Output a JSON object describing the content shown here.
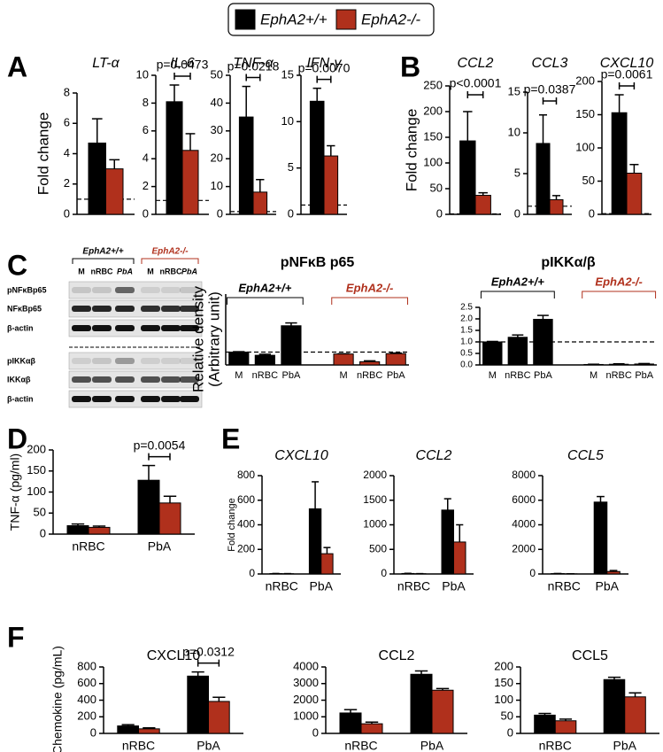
{
  "legend": [
    {
      "name": "EphA2+/+",
      "color": "#000000"
    },
    {
      "name": "EphA2-/-",
      "color": "#b0301c"
    }
  ],
  "panel_labels": [
    "A",
    "B",
    "C",
    "D",
    "E",
    "F"
  ],
  "blot": {
    "groups": [
      "EphA2+/+",
      "EphA2-/-"
    ],
    "lanes": [
      "M",
      "nRBC",
      "PbA",
      "M",
      "nRBC",
      "PbA"
    ],
    "rows": [
      "pNFκBp65",
      "NFκBp65",
      "β-actin",
      "pIKKαβ",
      "IKKαβ",
      "β-actin"
    ]
  },
  "chart_data": [
    {
      "type": "bar",
      "title": "LT-α",
      "title_italic": true,
      "ylabel": "Fold change",
      "ylim": [
        0,
        8
      ],
      "yticks": [
        0,
        2,
        4,
        6,
        8
      ],
      "reference_line": 1,
      "series": [
        {
          "values": [
            4.7
          ],
          "errors": [
            1.6
          ]
        },
        {
          "values": [
            3.0
          ],
          "errors": [
            0.6
          ]
        }
      ]
    },
    {
      "type": "bar",
      "title": "IL-6",
      "title_italic": true,
      "ylim": [
        0,
        10
      ],
      "yticks": [
        0,
        2,
        4,
        6,
        8,
        10
      ],
      "reference_line": 1,
      "series": [
        {
          "values": [
            8.1
          ],
          "errors": [
            1.2
          ]
        },
        {
          "values": [
            4.6
          ],
          "errors": [
            1.2
          ]
        }
      ],
      "annotations": [
        {
          "text": "p=0.0473",
          "category": 0
        }
      ]
    },
    {
      "type": "bar",
      "title": "TNF-α",
      "title_italic": true,
      "ylim": [
        0,
        50
      ],
      "yticks": [
        0,
        10,
        20,
        30,
        40,
        50
      ],
      "reference_line": 1,
      "series": [
        {
          "values": [
            35
          ],
          "errors": [
            11
          ]
        },
        {
          "values": [
            8
          ],
          "errors": [
            4.5
          ]
        }
      ],
      "annotations": [
        {
          "text": "p=0.0218",
          "category": 0
        }
      ]
    },
    {
      "type": "bar",
      "title": "IFN-γ",
      "title_italic": true,
      "ylim": [
        0,
        15
      ],
      "yticks": [
        0,
        5,
        10,
        15
      ],
      "reference_line": 1,
      "series": [
        {
          "values": [
            12.2
          ],
          "errors": [
            1.4
          ]
        },
        {
          "values": [
            6.3
          ],
          "errors": [
            1.1
          ]
        }
      ],
      "annotations": [
        {
          "text": "p=0.0070",
          "category": 0
        }
      ]
    },
    {
      "type": "bar",
      "title": "CCL2",
      "title_italic": true,
      "ylabel": "Fold change",
      "ylim": [
        0,
        250
      ],
      "yticks": [
        0,
        50,
        100,
        150,
        200,
        250
      ],
      "reference_line": 1,
      "series": [
        {
          "values": [
            143
          ],
          "errors": [
            57
          ]
        },
        {
          "values": [
            37
          ],
          "errors": [
            5
          ]
        }
      ],
      "annotations": [
        {
          "text": "p<0.0001",
          "category": 0
        }
      ]
    },
    {
      "type": "bar",
      "title": "CCL3",
      "title_italic": true,
      "ylim": [
        0,
        15
      ],
      "yticks": [
        0,
        5,
        10,
        15
      ],
      "reference_line": 1,
      "series": [
        {
          "values": [
            8.7
          ],
          "errors": [
            3.5
          ]
        },
        {
          "values": [
            1.8
          ],
          "errors": [
            0.5
          ]
        }
      ],
      "annotations": [
        {
          "text": "p=0.0387",
          "category": 0
        }
      ]
    },
    {
      "type": "bar",
      "title": "CXCL10",
      "title_italic": true,
      "ylim": [
        0,
        200
      ],
      "yticks": [
        0,
        50,
        100,
        150,
        200
      ],
      "reference_line": 1,
      "series": [
        {
          "values": [
            153
          ],
          "errors": [
            27
          ]
        },
        {
          "values": [
            62
          ],
          "errors": [
            13
          ]
        }
      ],
      "annotations": [
        {
          "text": "p=0.0061",
          "category": 0
        }
      ]
    },
    {
      "type": "bar",
      "title": "pNFκB p65",
      "title_bold": true,
      "ylabel": [
        "Relative density",
        "(Arbitrary unit)"
      ],
      "ylim": [
        0,
        4
      ],
      "reference_line": 1,
      "split_by_series": true,
      "groups": [
        "EphA2+/+",
        "EphA2-/-"
      ],
      "categories": [
        "M",
        "nRBC",
        "PbA"
      ],
      "series": [
        {
          "values": [
            1.0,
            0.75,
            3.05
          ],
          "errors": [
            0.03,
            0.08,
            0.22
          ]
        },
        {
          "values": [
            0.85,
            0.25,
            0.88
          ],
          "errors": [
            0.02,
            0.07,
            0.05
          ]
        }
      ]
    },
    {
      "type": "bar",
      "title": "pIKKα/β",
      "title_bold": true,
      "ylim": [
        0,
        2.5
      ],
      "yticks": [
        {
          "value": 0,
          "label": "0.0"
        },
        0.5,
        {
          "value": 1,
          "label": "1.0"
        },
        1.5,
        {
          "value": 2,
          "label": "2.0"
        },
        2.5
      ],
      "reference_line": 1,
      "split_by_series": true,
      "groups": [
        "EphA2+/+",
        "EphA2-/-"
      ],
      "categories": [
        "M",
        "nRBC",
        "PbA"
      ],
      "series": [
        {
          "values": [
            1.0,
            1.2,
            1.98
          ],
          "errors": [
            0.02,
            0.1,
            0.17
          ]
        },
        {
          "values": [
            0.02,
            0.03,
            0.04
          ],
          "errors": [
            0.01,
            0.02,
            0.02
          ]
        }
      ]
    },
    {
      "type": "bar",
      "ylabel": "TNF-α (pg/ml)",
      "ylim": [
        0,
        200
      ],
      "yticks": [
        0,
        50,
        100,
        150,
        200
      ],
      "categories": [
        "nRBC",
        "PbA"
      ],
      "series": [
        {
          "values": [
            20,
            128
          ],
          "errors": [
            4,
            35
          ]
        },
        {
          "values": [
            16,
            74
          ],
          "errors": [
            3,
            16
          ]
        }
      ],
      "annotations": [
        {
          "text": "p=0.0054",
          "category": 1
        }
      ]
    },
    {
      "type": "bar",
      "title": "CXCL10",
      "title_italic": true,
      "ylabel": "Fold change",
      "ylim": [
        0,
        800
      ],
      "yticks": [
        0,
        200,
        400,
        600,
        800
      ],
      "categories": [
        "nRBC",
        "PbA"
      ],
      "series": [
        {
          "values": [
            3,
            530
          ],
          "errors": [
            1,
            220
          ]
        },
        {
          "values": [
            2,
            165
          ],
          "errors": [
            1,
            50
          ]
        }
      ]
    },
    {
      "type": "bar",
      "title": "CCL2",
      "title_italic": true,
      "ylim": [
        0,
        2000
      ],
      "yticks": [
        0,
        500,
        1000,
        1500,
        2000
      ],
      "categories": [
        "nRBC",
        "PbA"
      ],
      "series": [
        {
          "values": [
            10,
            1300
          ],
          "errors": [
            3,
            230
          ]
        },
        {
          "values": [
            5,
            650
          ],
          "errors": [
            2,
            350
          ]
        }
      ]
    },
    {
      "type": "bar",
      "title": "CCL5",
      "title_italic": true,
      "ylim": [
        0,
        8000
      ],
      "yticks": [
        0,
        2000,
        4000,
        6000,
        8000
      ],
      "categories": [
        "nRBC",
        "PbA"
      ],
      "series": [
        {
          "values": [
            30,
            5850
          ],
          "errors": [
            10,
            450
          ]
        },
        {
          "values": [
            10,
            200
          ],
          "errors": [
            5,
            80
          ]
        }
      ]
    },
    {
      "type": "bar",
      "title": "CXCL10",
      "ylabel": "Chemokine (pg/mL)",
      "ylim": [
        0,
        800
      ],
      "yticks": [
        0,
        200,
        400,
        600,
        800
      ],
      "categories": [
        "nRBC",
        "PbA"
      ],
      "series": [
        {
          "values": [
            90,
            690
          ],
          "errors": [
            15,
            50
          ]
        },
        {
          "values": [
            55,
            385
          ],
          "errors": [
            12,
            50
          ]
        }
      ],
      "annotations": [
        {
          "text": "p=0.0312",
          "category": 1
        }
      ]
    },
    {
      "type": "bar",
      "title": "CCL2",
      "ylim": [
        0,
        4000
      ],
      "yticks": [
        0,
        1000,
        2000,
        3000,
        4000
      ],
      "categories": [
        "nRBC",
        "PbA"
      ],
      "series": [
        {
          "values": [
            1230,
            3560
          ],
          "errors": [
            200,
            200
          ]
        },
        {
          "values": [
            580,
            2600
          ],
          "errors": [
            100,
            100
          ]
        }
      ]
    },
    {
      "type": "bar",
      "title": "CCL5",
      "ylim": [
        0,
        200
      ],
      "yticks": [
        0,
        50,
        100,
        150,
        200
      ],
      "categories": [
        "nRBC",
        "PbA"
      ],
      "series": [
        {
          "values": [
            55,
            162
          ],
          "errors": [
            5,
            7
          ]
        },
        {
          "values": [
            38,
            110
          ],
          "errors": [
            5,
            12
          ]
        }
      ]
    }
  ]
}
